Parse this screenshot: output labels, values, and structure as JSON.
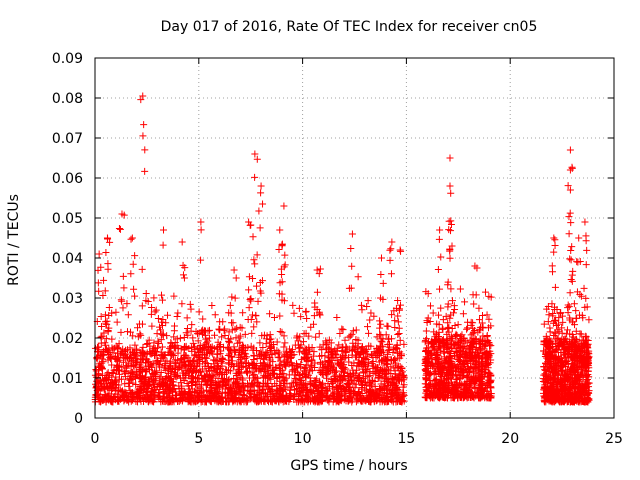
{
  "chart_data": {
    "type": "scatter",
    "title": "Day 017 of 2016, Rate Of TEC Index for receiver cn05",
    "xlabel": "GPS time / hours",
    "ylabel": "ROTI / TECUs",
    "xlim": [
      0,
      25
    ],
    "ylim": [
      0,
      0.09
    ],
    "xticks": [
      0,
      5,
      10,
      15,
      20,
      25
    ],
    "xtick_labels": [
      "0",
      "5",
      "10",
      "15",
      "20",
      "25"
    ],
    "yticks": [
      0,
      0.01,
      0.02,
      0.03,
      0.04,
      0.05,
      0.06,
      0.07,
      0.08,
      0.09
    ],
    "ytick_labels": [
      "0",
      "0.01",
      "0.02",
      "0.03",
      "0.04",
      "0.05",
      "0.06",
      "0.07",
      "0.08",
      "0.09"
    ],
    "grid": true,
    "marker": "+",
    "color": "#ff0000",
    "series": [
      {
        "name": "ROTI",
        "segments": [
          {
            "x_start": 0.0,
            "x_end": 14.9,
            "y_base_min": 0.004,
            "y_base_max": 0.018,
            "density": "very high"
          },
          {
            "x_start": 15.9,
            "x_end": 19.1,
            "y_base_min": 0.005,
            "y_base_max": 0.02,
            "density": "high"
          },
          {
            "x_start": 21.6,
            "x_end": 23.8,
            "y_base_min": 0.004,
            "y_base_max": 0.02,
            "density": "high"
          }
        ],
        "notable_points": [
          {
            "x": 0.2,
            "y": 0.041
          },
          {
            "x": 0.6,
            "y": 0.045
          },
          {
            "x": 1.3,
            "y": 0.051
          },
          {
            "x": 1.8,
            "y": 0.045
          },
          {
            "x": 2.3,
            "y": 0.0805
          },
          {
            "x": 3.3,
            "y": 0.047
          },
          {
            "x": 4.2,
            "y": 0.044
          },
          {
            "x": 5.1,
            "y": 0.049
          },
          {
            "x": 6.7,
            "y": 0.037
          },
          {
            "x": 7.4,
            "y": 0.049
          },
          {
            "x": 7.7,
            "y": 0.066
          },
          {
            "x": 8.0,
            "y": 0.058
          },
          {
            "x": 8.9,
            "y": 0.047
          },
          {
            "x": 9.1,
            "y": 0.053
          },
          {
            "x": 10.7,
            "y": 0.037
          },
          {
            "x": 12.4,
            "y": 0.046
          },
          {
            "x": 13.8,
            "y": 0.04
          },
          {
            "x": 14.3,
            "y": 0.044
          },
          {
            "x": 14.7,
            "y": 0.042
          },
          {
            "x": 16.6,
            "y": 0.047
          },
          {
            "x": 17.1,
            "y": 0.065
          },
          {
            "x": 17.1,
            "y": 0.058
          },
          {
            "x": 18.3,
            "y": 0.038
          },
          {
            "x": 22.1,
            "y": 0.045
          },
          {
            "x": 22.9,
            "y": 0.067
          },
          {
            "x": 22.9,
            "y": 0.062
          },
          {
            "x": 22.9,
            "y": 0.057
          },
          {
            "x": 23.3,
            "y": 0.045
          },
          {
            "x": 23.6,
            "y": 0.049
          }
        ]
      }
    ]
  }
}
